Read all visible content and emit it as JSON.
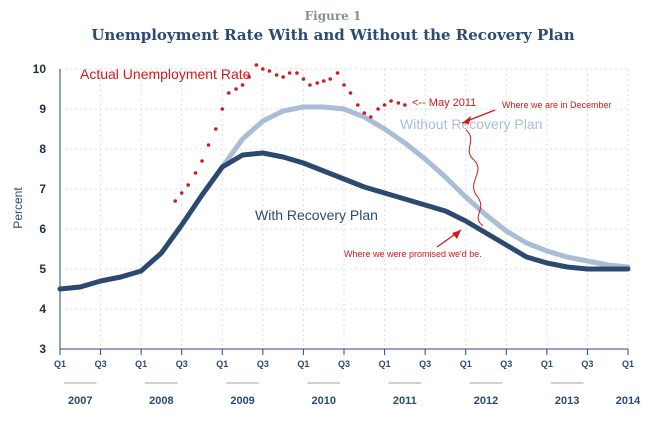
{
  "figure_label": "Figure 1",
  "chart_data": {
    "type": "line",
    "title": "Unemployment Rate With and Without the Recovery Plan",
    "ylabel": "Percent",
    "ylim": [
      3,
      10
    ],
    "yticks": [
      3,
      4,
      5,
      6,
      7,
      8,
      9,
      10
    ],
    "grid": true,
    "x_quarter_labels": [
      "Q1",
      "Q3",
      "Q1",
      "Q3",
      "Q1",
      "Q3",
      "Q1",
      "Q3",
      "Q1",
      "Q3",
      "Q1",
      "Q3",
      "Q1",
      "Q3",
      "Q1"
    ],
    "x_years": [
      "2007",
      "2008",
      "2009",
      "2010",
      "2011",
      "2012",
      "2013",
      "2014"
    ],
    "series": [
      {
        "name": "With Recovery Plan",
        "color": "#2c4a70",
        "x": [
          2007.0,
          2007.25,
          2007.5,
          2007.75,
          2008.0,
          2008.25,
          2008.5,
          2008.75,
          2009.0,
          2009.25,
          2009.5,
          2009.75,
          2010.0,
          2010.25,
          2010.5,
          2010.75,
          2011.0,
          2011.25,
          2011.5,
          2011.75,
          2012.0,
          2012.25,
          2012.5,
          2012.75,
          2013.0,
          2013.25,
          2013.5,
          2013.75,
          2014.0
        ],
        "values": [
          4.5,
          4.55,
          4.7,
          4.8,
          4.95,
          5.4,
          6.1,
          6.85,
          7.55,
          7.85,
          7.9,
          7.8,
          7.65,
          7.45,
          7.25,
          7.05,
          6.9,
          6.75,
          6.6,
          6.45,
          6.2,
          5.9,
          5.6,
          5.3,
          5.15,
          5.05,
          5.0,
          5.0,
          5.0
        ]
      },
      {
        "name": "Without Recovery Plan",
        "color": "#a9bdd6",
        "x": [
          2009.0,
          2009.25,
          2009.5,
          2009.75,
          2010.0,
          2010.25,
          2010.5,
          2010.75,
          2011.0,
          2011.25,
          2011.5,
          2011.75,
          2012.0,
          2012.25,
          2012.5,
          2012.75,
          2013.0,
          2013.25,
          2013.5,
          2013.75,
          2014.0
        ],
        "values": [
          7.55,
          8.25,
          8.7,
          8.95,
          9.05,
          9.05,
          9.0,
          8.8,
          8.5,
          8.15,
          7.75,
          7.3,
          6.8,
          6.35,
          5.95,
          5.65,
          5.45,
          5.3,
          5.2,
          5.1,
          5.05
        ]
      },
      {
        "name": "Actual Unemployment Rate",
        "color": "#d11a1a",
        "style": "dots",
        "x": [
          2008.42,
          2008.5,
          2008.58,
          2008.67,
          2008.75,
          2008.83,
          2008.92,
          2009.0,
          2009.08,
          2009.17,
          2009.25,
          2009.33,
          2009.42,
          2009.5,
          2009.58,
          2009.67,
          2009.75,
          2009.83,
          2009.92,
          2010.0,
          2010.08,
          2010.17,
          2010.25,
          2010.33,
          2010.42,
          2010.5,
          2010.58,
          2010.67,
          2010.75,
          2010.83,
          2010.92,
          2011.0,
          2011.08,
          2011.17,
          2011.25
        ],
        "values": [
          6.7,
          6.9,
          7.1,
          7.4,
          7.7,
          8.1,
          8.5,
          9.0,
          9.4,
          9.5,
          9.6,
          9.8,
          10.1,
          10.0,
          9.95,
          9.85,
          9.8,
          9.9,
          9.9,
          9.75,
          9.6,
          9.65,
          9.7,
          9.75,
          9.9,
          9.6,
          9.4,
          9.1,
          8.9,
          8.8,
          9.0,
          9.1,
          9.2,
          9.15,
          9.1
        ]
      }
    ],
    "annotations": [
      {
        "id": "actual",
        "text": "Actual Unemployment Rate"
      },
      {
        "id": "may",
        "text": "<-- May 2011"
      },
      {
        "id": "december",
        "text": "Where we are in December"
      },
      {
        "id": "promised",
        "text": "Where we were promised we'd be."
      }
    ]
  }
}
